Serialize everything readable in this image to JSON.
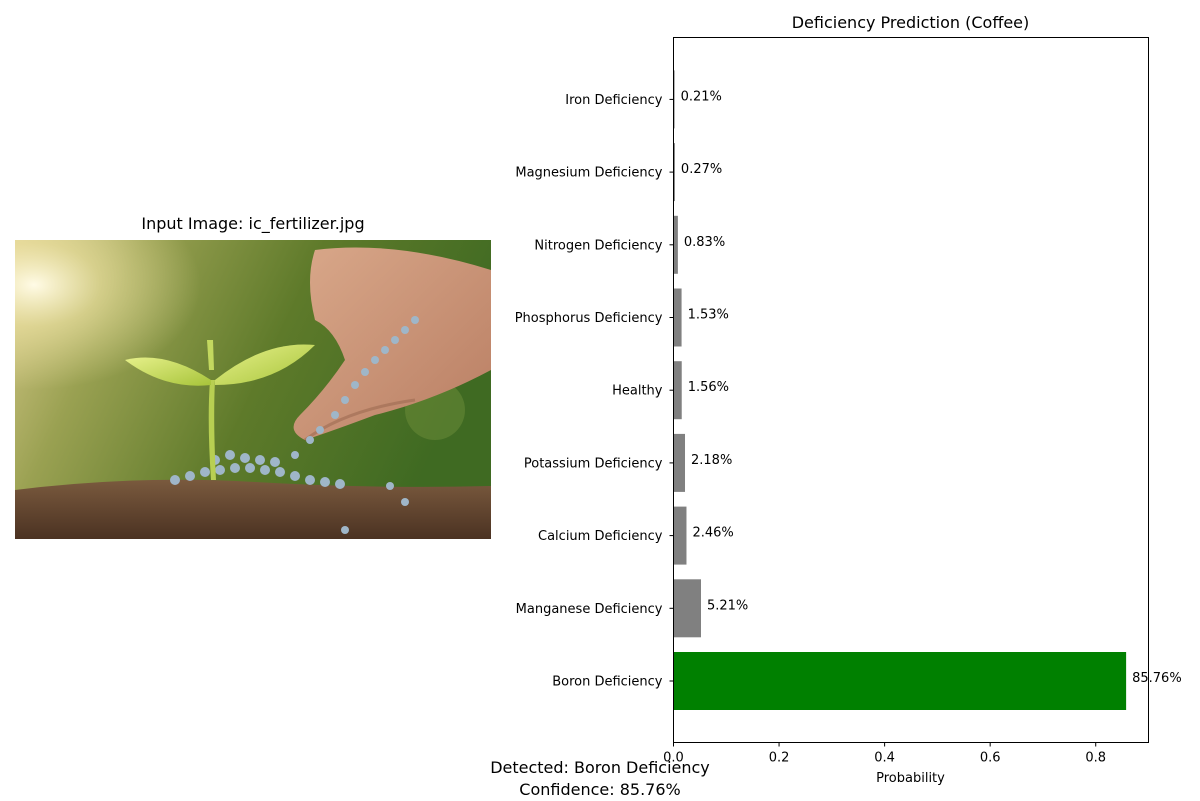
{
  "input_image": {
    "title": "Input Image: ic_fertilizer.jpg"
  },
  "chart_data": {
    "type": "bar",
    "orientation": "horizontal",
    "title": "Deficiency Prediction (Coffee)",
    "xlabel": "Probability",
    "ylabel": "",
    "xlim": [
      0,
      0.9
    ],
    "xticks": [
      "0.0",
      "0.2",
      "0.4",
      "0.6",
      "0.8"
    ],
    "xtick_values": [
      0,
      0.2,
      0.4,
      0.6,
      0.8
    ],
    "grid": false,
    "categories": [
      "Iron Deficiency",
      "Magnesium Deficiency",
      "Nitrogen Deficiency",
      "Phosphorus Deficiency",
      "Healthy",
      "Potassium Deficiency",
      "Calcium Deficiency",
      "Manganese Deficiency",
      "Boron Deficiency"
    ],
    "values": [
      0.0021,
      0.0027,
      0.0083,
      0.0153,
      0.0156,
      0.0218,
      0.0246,
      0.0521,
      0.8576
    ],
    "value_labels": [
      "0.21%",
      "0.27%",
      "0.83%",
      "1.53%",
      "1.56%",
      "2.18%",
      "2.46%",
      "5.21%",
      "85.76%"
    ],
    "colors": [
      "#808080",
      "#808080",
      "#808080",
      "#808080",
      "#808080",
      "#808080",
      "#808080",
      "#808080",
      "#008000"
    ]
  },
  "result": {
    "detected": "Detected: Boron Deficiency",
    "confidence": "Confidence: 85.76%"
  }
}
